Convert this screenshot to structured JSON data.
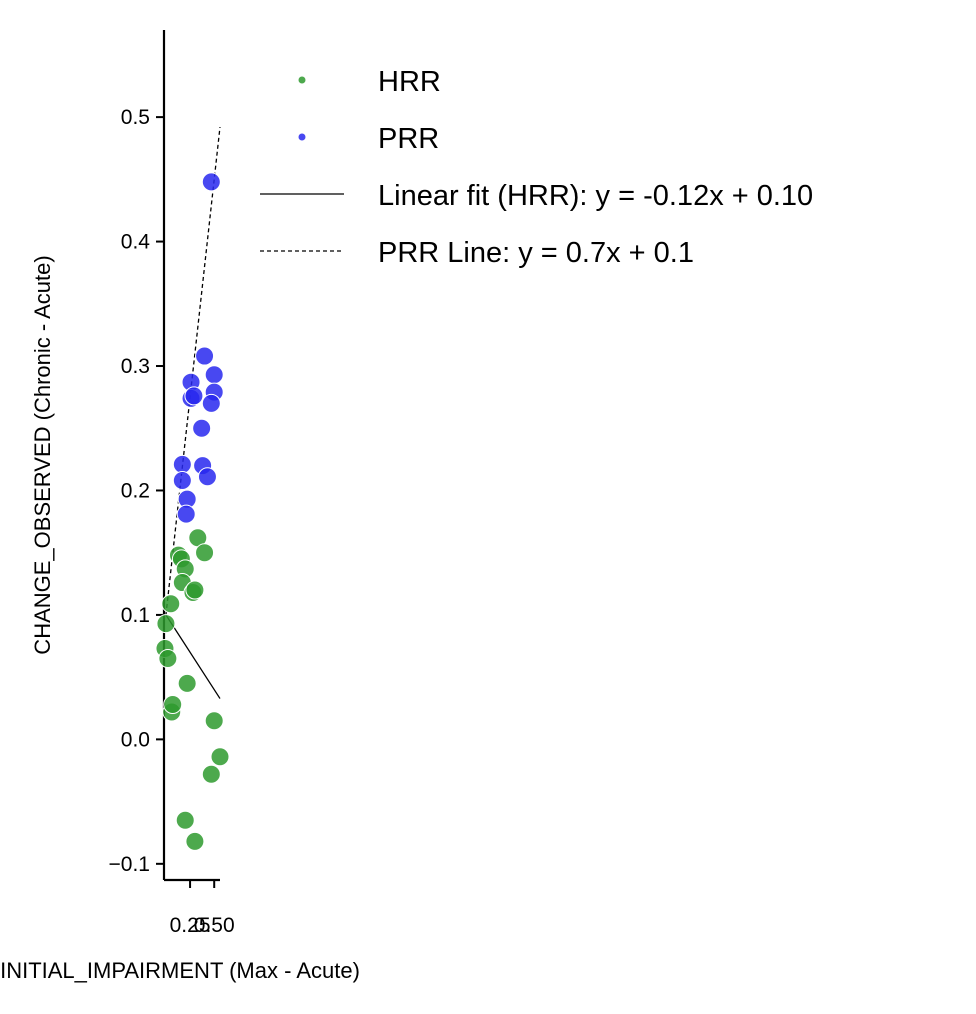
{
  "chart_data": {
    "type": "scatter",
    "xlabel": "INITIAL_IMPAIRMENT (Max - Acute)",
    "ylabel": "CHANGE_OBSERVED (Chronic - Acute)",
    "xlim": [
      -0.02,
      0.56
    ],
    "ylim": [
      -0.113,
      0.57
    ],
    "x_ticks": [
      0.25,
      0.5
    ],
    "x_tick_labels": [
      "0.25",
      "0.50"
    ],
    "y_ticks": [
      -0.1,
      0.0,
      0.1,
      0.2,
      0.3,
      0.4,
      0.5
    ],
    "y_tick_labels": [
      "−0.1",
      "0.0",
      "0.1",
      "0.2",
      "0.3",
      "0.4",
      "0.5"
    ],
    "grid": false,
    "legend_position": "right",
    "series": [
      {
        "name": "HRR",
        "color": "#2e9a2e",
        "points": [
          [
            0.0,
            0.093
          ],
          [
            -0.01,
            0.073
          ],
          [
            0.02,
            0.065
          ],
          [
            0.05,
            0.109
          ],
          [
            0.13,
            0.148
          ],
          [
            0.16,
            0.145
          ],
          [
            0.2,
            0.137
          ],
          [
            0.17,
            0.126
          ],
          [
            0.28,
            0.118
          ],
          [
            0.3,
            0.12
          ],
          [
            0.33,
            0.162
          ],
          [
            0.4,
            0.15
          ],
          [
            0.22,
            0.045
          ],
          [
            0.06,
            0.022
          ],
          [
            0.07,
            0.028
          ],
          [
            0.5,
            0.015
          ],
          [
            0.56,
            -0.014
          ],
          [
            0.47,
            -0.028
          ],
          [
            0.2,
            -0.065
          ],
          [
            0.3,
            -0.082
          ]
        ]
      },
      {
        "name": "PRR",
        "color": "#2828ee",
        "points": [
          [
            0.47,
            0.448
          ],
          [
            0.4,
            0.308
          ],
          [
            0.5,
            0.293
          ],
          [
            0.5,
            0.279
          ],
          [
            0.47,
            0.27
          ],
          [
            0.26,
            0.287
          ],
          [
            0.26,
            0.274
          ],
          [
            0.29,
            0.276
          ],
          [
            0.37,
            0.25
          ],
          [
            0.17,
            0.221
          ],
          [
            0.38,
            0.22
          ],
          [
            0.43,
            0.211
          ],
          [
            0.17,
            0.208
          ],
          [
            0.22,
            0.193
          ],
          [
            0.21,
            0.181
          ]
        ]
      }
    ],
    "lines": [
      {
        "name": "Linear fit (HRR): y = -0.12x + 0.10",
        "style": "solid",
        "slope": -0.12,
        "intercept": 0.1,
        "x_range": [
          0.0,
          0.56
        ]
      },
      {
        "name": "PRR Line: y = 0.7x + 0.1",
        "style": "dashed",
        "slope": 0.7,
        "intercept": 0.1,
        "x_range": [
          0.0,
          0.56
        ]
      }
    ],
    "legend": [
      {
        "label": "HRR",
        "kind": "point",
        "color": "#2e9a2e"
      },
      {
        "label": "PRR",
        "kind": "point",
        "color": "#2828ee"
      },
      {
        "label": "Linear fit (HRR): y = -0.12x + 0.10",
        "kind": "solid"
      },
      {
        "label": "PRR Line: y = 0.7x + 0.1",
        "kind": "dashed"
      }
    ]
  }
}
